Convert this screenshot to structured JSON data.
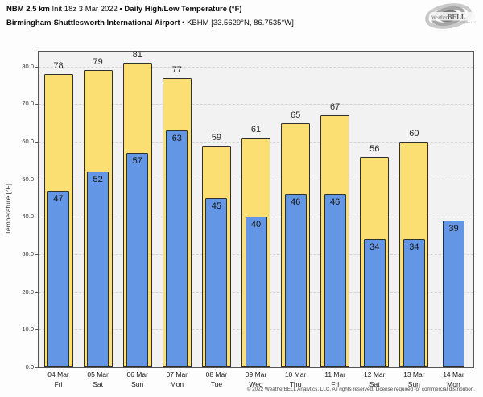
{
  "header": {
    "title": {
      "product": "NBM 2.5 km",
      "init": " Init 18z 3 Mar 2022 ",
      "metric": "• Daily High/Low Temperature (°F)"
    },
    "subtitle": {
      "station": "Birmingham-Shuttlesworth International Airport",
      "location": " • KBHM [33.5629°N, 86.7535°W]"
    }
  },
  "logo": {
    "brand_a": "Weather",
    "brand_b": "BELL",
    "tagline": "Analytics LLC"
  },
  "chart_data": {
    "type": "bar",
    "title": "NBM 2.5 km Init 18z 3 Mar 2022 • Daily High/Low Temperature (°F)",
    "subtitle": "Birmingham-Shuttlesworth International Airport • KBHM [33.5629°N, 86.7535°W]",
    "ylabel": "Temperature [°F]",
    "ylim": [
      0,
      84
    ],
    "yticks": [
      0,
      10,
      20,
      30,
      40,
      50,
      60,
      70,
      80
    ],
    "ytick_format": "one-decimal",
    "grid": "horizontal-dashed",
    "legend_position": "none",
    "plot_bg": "#f2f2f2",
    "bar_border": "#2f2f2f",
    "categories": [
      {
        "date": "04 Mar",
        "day": "Fri"
      },
      {
        "date": "05 Mar",
        "day": "Sat"
      },
      {
        "date": "06 Mar",
        "day": "Sun"
      },
      {
        "date": "07 Mar",
        "day": "Mon"
      },
      {
        "date": "08 Mar",
        "day": "Tue"
      },
      {
        "date": "09 Mar",
        "day": "Wed"
      },
      {
        "date": "10 Mar",
        "day": "Thu"
      },
      {
        "date": "11 Mar",
        "day": "Fri"
      },
      {
        "date": "12 Mar",
        "day": "Sat"
      },
      {
        "date": "13 Mar",
        "day": "Sun"
      },
      {
        "date": "14 Mar",
        "day": "Mon"
      }
    ],
    "series": [
      {
        "name": "Daily High",
        "color": "#fbdf73",
        "values": [
          78,
          79,
          81,
          77,
          59,
          61,
          65,
          67,
          56,
          60,
          null
        ]
      },
      {
        "name": "Daily Low",
        "color": "#6496e6",
        "values": [
          47,
          52,
          57,
          63,
          45,
          40,
          46,
          46,
          34,
          34,
          39
        ]
      }
    ]
  },
  "footer": {
    "copyright": "© 2022 WeatherBELL Analytics, LLC. All rights reserved. License required for commercial distribution."
  }
}
